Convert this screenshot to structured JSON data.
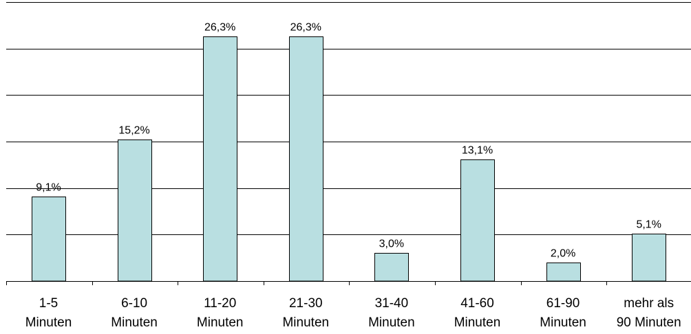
{
  "chart_data": {
    "type": "bar",
    "categories": [
      [
        "1-5",
        "Minuten"
      ],
      [
        "6-10",
        "Minuten"
      ],
      [
        "11-20",
        "Minuten"
      ],
      [
        "21-30",
        "Minuten"
      ],
      [
        "31-40",
        "Minuten"
      ],
      [
        "41-60",
        "Minuten"
      ],
      [
        "61-90",
        "Minuten"
      ],
      [
        "mehr als",
        "90 Minuten"
      ]
    ],
    "values": [
      9.1,
      15.2,
      26.3,
      26.3,
      3.0,
      13.1,
      2.0,
      5.1
    ],
    "data_labels": [
      "9,1%",
      "15,2%",
      "26,3%",
      "26,3%",
      "3,0%",
      "13,1%",
      "2,0%",
      "5,1%"
    ],
    "title": "",
    "xlabel": "",
    "ylabel": "",
    "ylim": [
      0,
      30
    ],
    "y_tick_step": 5,
    "y_tick_labels_shown": false,
    "grid": true,
    "legend": "none",
    "colors": {
      "bar_fill": "#b9dfe1",
      "bar_stroke": "#000000",
      "gridline": "#000000",
      "axis": "#000000",
      "background": "#ffffff"
    }
  }
}
